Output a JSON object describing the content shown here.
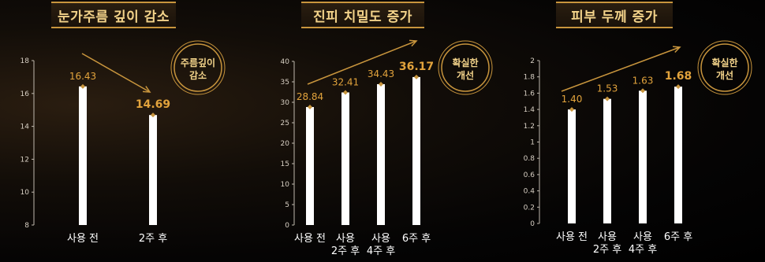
{
  "chart_data": [
    {
      "type": "bar",
      "title": "눈가주름 깊이 감소",
      "categories": [
        "사용 전",
        "2주 후"
      ],
      "values": [
        16.43,
        14.69
      ],
      "value_labels": [
        "16.43",
        "14.69"
      ],
      "ylim": [
        8,
        18
      ],
      "yticks": [
        "8",
        "10",
        "12",
        "14",
        "16",
        "18"
      ],
      "badge": [
        "주름깊이",
        "감소"
      ],
      "trend": "down"
    },
    {
      "type": "bar",
      "title": "진피 치밀도 증가",
      "categories": [
        [
          "사용 전"
        ],
        [
          "사용",
          "2주 후"
        ],
        [
          "사용",
          "4주 후"
        ],
        [
          "6주 후"
        ]
      ],
      "values": [
        28.84,
        32.41,
        34.43,
        36.17
      ],
      "value_labels": [
        "28.84",
        "32.41",
        "34.43",
        "36.17"
      ],
      "ylim": [
        0,
        40
      ],
      "yticks": [
        "0",
        "5",
        "10",
        "15",
        "20",
        "25",
        "30",
        "35",
        "40"
      ],
      "badge": [
        "확실한",
        "개선"
      ],
      "trend": "up"
    },
    {
      "type": "bar",
      "title": "피부 두께 증가",
      "categories": [
        [
          "사용 전"
        ],
        [
          "사용",
          "2주 후"
        ],
        [
          "사용",
          "4주 후"
        ],
        [
          "6주 후"
        ]
      ],
      "values": [
        1.4,
        1.53,
        1.63,
        1.68
      ],
      "value_labels": [
        "1.40",
        "1.53",
        "1.63",
        "1.68"
      ],
      "ylim": [
        0,
        2
      ],
      "yticks": [
        "0",
        "0.2",
        "0.4",
        "0.6",
        "0.8",
        "1",
        "1.2",
        "1.4",
        "1.6",
        "1.8",
        "2"
      ],
      "badge": [
        "확실한",
        "개선"
      ],
      "trend": "up"
    }
  ],
  "colors": {
    "accent": "#c8953d",
    "label": "#e2a33c",
    "bar": "#ffffff",
    "title": "#f3d38a"
  }
}
